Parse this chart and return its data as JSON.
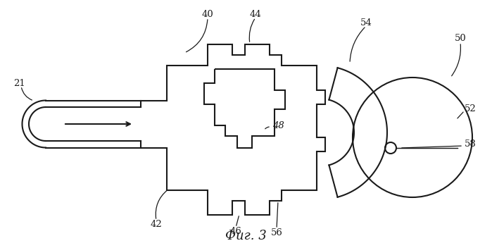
{
  "title": "Фиг. 3",
  "title_fontsize": 13,
  "bg_color": "#ffffff",
  "line_color": "#1a1a1a",
  "line_width": 1.5
}
